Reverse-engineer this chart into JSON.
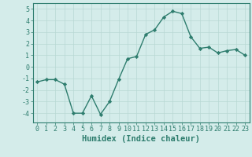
{
  "x": [
    0,
    1,
    2,
    3,
    4,
    5,
    6,
    7,
    8,
    9,
    10,
    11,
    12,
    13,
    14,
    15,
    16,
    17,
    18,
    19,
    20,
    21,
    22,
    23
  ],
  "y": [
    -1.3,
    -1.1,
    -1.1,
    -1.5,
    -4.0,
    -4.0,
    -2.5,
    -4.1,
    -3.0,
    -1.1,
    0.7,
    0.9,
    2.8,
    3.2,
    4.3,
    4.8,
    4.6,
    2.6,
    1.6,
    1.7,
    1.2,
    1.4,
    1.5,
    1.0
  ],
  "line_color": "#2e7d6e",
  "marker": "D",
  "marker_size": 2.2,
  "bg_color": "#d4ecea",
  "grid_color": "#b8d8d4",
  "xlabel": "Humidex (Indice chaleur)",
  "ylim": [
    -4.8,
    5.5
  ],
  "xlim": [
    -0.5,
    23.5
  ],
  "yticks": [
    -4,
    -3,
    -2,
    -1,
    0,
    1,
    2,
    3,
    4,
    5
  ],
  "xticks": [
    0,
    1,
    2,
    3,
    4,
    5,
    6,
    7,
    8,
    9,
    10,
    11,
    12,
    13,
    14,
    15,
    16,
    17,
    18,
    19,
    20,
    21,
    22,
    23
  ],
  "tick_color": "#2e7d6e",
  "label_color": "#2e7d6e",
  "font_size": 6.0,
  "xlabel_fontsize": 7.5,
  "linewidth": 1.0
}
